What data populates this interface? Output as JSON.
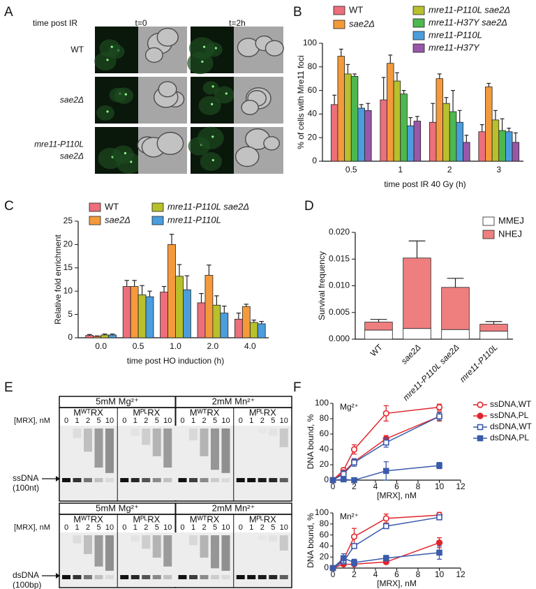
{
  "panel_labels": [
    "A",
    "B",
    "C",
    "D",
    "E",
    "F"
  ],
  "panel_a": {
    "header": "time post IR",
    "columns": [
      "t=0",
      "t=2h"
    ],
    "rows": [
      [
        "WT"
      ],
      [
        "sae2Δ"
      ],
      [
        "mre11-P110L",
        "sae2Δ"
      ]
    ]
  },
  "panel_e": {
    "conditions": [
      "5mM Mg²⁺",
      "2mM Mn²⁺"
    ],
    "proteins": [
      "MᵂᵀRX",
      "MᴾᴸRX"
    ],
    "lane_label": "[MRX], nM",
    "lanes": [
      0,
      1,
      2,
      5,
      10
    ],
    "substrates": [
      {
        "name": "ssDNA",
        "size": "(100nt)"
      },
      {
        "name": "dsDNA",
        "size": "(100bp)"
      }
    ]
  },
  "chart_data": [
    {
      "type": "bar",
      "categories": [
        "0.5",
        "1",
        "2",
        "3"
      ],
      "series": [
        {
          "name": "WT",
          "color": "#ec6f7b",
          "values": [
            48,
            52,
            33,
            25
          ],
          "errors": [
            8,
            19,
            16,
            6
          ]
        },
        {
          "name": "sae2Δ",
          "italic": true,
          "color": "#f59a3b",
          "values": [
            89,
            83,
            70,
            63
          ],
          "errors": [
            6,
            7,
            4,
            3
          ]
        },
        {
          "name": "mre11-P110L sae2Δ",
          "italic": true,
          "color": "#b8c02c",
          "values": [
            74,
            68,
            49,
            35
          ],
          "errors": [
            8,
            7,
            5,
            8
          ]
        },
        {
          "name": "mre11-H37Y sae2Δ",
          "italic": true,
          "color": "#4db84f",
          "values": [
            72,
            57,
            42,
            26
          ],
          "errors": [
            2,
            3,
            18,
            10
          ]
        },
        {
          "name": "mre11-P110L",
          "italic": true,
          "color": "#4a9ede",
          "values": [
            45,
            30,
            33,
            25
          ],
          "errors": [
            3,
            7,
            10,
            3
          ]
        },
        {
          "name": "mre11-H37Y",
          "italic": true,
          "color": "#9a57a8",
          "values": [
            43,
            34,
            16,
            16
          ],
          "errors": [
            6,
            4,
            6,
            8
          ]
        }
      ],
      "ylim": [
        0,
        100
      ],
      "yticks": [
        0,
        20,
        40,
        60,
        80,
        100
      ],
      "y_label": "% of cells with Mre11 foci",
      "x_label": "time post IR 40 Gy (h)"
    },
    {
      "type": "bar",
      "categories": [
        "0.0",
        "0.5",
        "1.0",
        "2.0",
        "4.0"
      ],
      "series": [
        {
          "name": "WT",
          "color": "#ec6f7b",
          "values": [
            0.5,
            11,
            9.8,
            7.5,
            4
          ],
          "errors": [
            0.2,
            1.3,
            1.2,
            2,
            1.3
          ]
        },
        {
          "name": "sae2Δ",
          "italic": true,
          "color": "#f59a3b",
          "values": [
            0.3,
            11,
            20,
            13.4,
            6.7
          ],
          "errors": [
            0.1,
            1.3,
            2.2,
            2.2,
            0.5
          ]
        },
        {
          "name": "mre11-P110L sae2Δ",
          "italic": true,
          "color": "#b8c02c",
          "values": [
            0.6,
            9.2,
            13.2,
            7,
            3.3
          ],
          "errors": [
            0.2,
            2,
            2.5,
            2,
            0.5
          ]
        },
        {
          "name": "mre11-P110L",
          "italic": true,
          "color": "#4a9ede",
          "values": [
            0.6,
            8.8,
            10.3,
            5.3,
            3
          ],
          "errors": [
            0.2,
            1.2,
            3,
            1.5,
            0.5
          ]
        }
      ],
      "ylim": [
        0,
        25
      ],
      "yticks": [
        0,
        5,
        10,
        15,
        20,
        25
      ],
      "y_label": "Relative fold enrichment",
      "x_label": "time post HO induction (h)"
    },
    {
      "type": "bar",
      "stacked": true,
      "categories": [
        "WT",
        "sae2Δ",
        "mre11-P110L sae2Δ",
        "mre11-P110L"
      ],
      "series": [
        {
          "name": "MMEJ",
          "color": "#ffffff",
          "values": [
            0.0017,
            0.002,
            0.0018,
            0.0015
          ],
          "errors": [
            0.0003,
            0.0004,
            0.0003,
            0.0003
          ]
        },
        {
          "name": "NHEJ",
          "color": "#ef7f7f",
          "values": [
            0.0015,
            0.0132,
            0.0079,
            0.0013
          ],
          "errors": [
            0.0005,
            0.0032,
            0.0017,
            0.0005
          ]
        }
      ],
      "ylim": [
        0,
        0.02
      ],
      "yticks": [
        {
          "value": 0,
          "label": "0.000"
        },
        {
          "value": 0.005,
          "label": "0.005"
        },
        {
          "value": 0.01,
          "label": "0.010"
        },
        {
          "value": 0.015,
          "label": "0.015"
        },
        {
          "value": 0.02,
          "label": "0.020"
        }
      ],
      "y_label": "Survival frequency"
    },
    {
      "type": "line",
      "annotation": "Mg²⁺",
      "x": [
        0,
        1,
        2,
        5,
        10
      ],
      "series": [
        {
          "name": "ssDNA,WT",
          "color": "#e0252b",
          "marker": "circle",
          "filled": false,
          "values": [
            0,
            13,
            40,
            87,
            95
          ],
          "errors": [
            1,
            3,
            6,
            10,
            4
          ]
        },
        {
          "name": "ssDNA,PL",
          "color": "#e0252b",
          "marker": "circle",
          "filled": true,
          "values": [
            0,
            10,
            24,
            54,
            83
          ],
          "errors": [
            1,
            2,
            3,
            4,
            6
          ]
        },
        {
          "name": "dsDNA,WT",
          "color": "#3b5bab",
          "marker": "square",
          "filled": false,
          "values": [
            0,
            8,
            23,
            49,
            83
          ],
          "errors": [
            3,
            4,
            5,
            6,
            5
          ]
        },
        {
          "name": "dsDNA,PL",
          "color": "#3b5bab",
          "marker": "square",
          "filled": true,
          "values": [
            0,
            1,
            0,
            12,
            19
          ],
          "errors": [
            1,
            1,
            1,
            12,
            4
          ]
        }
      ],
      "xlim": [
        0,
        12
      ],
      "xticks": [
        0,
        2,
        4,
        6,
        8,
        10,
        12
      ],
      "ylim": [
        0,
        100
      ],
      "yticks": [
        0,
        20,
        40,
        60,
        80,
        100
      ],
      "y_label": "DNA bound, %",
      "x_label": "[MRX], nM"
    },
    {
      "type": "line",
      "annotation": "Mn²⁺",
      "x": [
        0,
        1,
        2,
        5,
        10
      ],
      "series": [
        {
          "color": "#e0252b",
          "marker": "circle",
          "filled": false,
          "values": [
            0,
            15,
            57,
            90,
            96
          ],
          "errors": [
            1,
            5,
            15,
            8,
            5
          ]
        },
        {
          "color": "#e0252b",
          "marker": "circle",
          "filled": true,
          "values": [
            0,
            7,
            7,
            11,
            46
          ],
          "errors": [
            1,
            3,
            3,
            3,
            9
          ]
        },
        {
          "color": "#3b5bab",
          "marker": "square",
          "filled": false,
          "values": [
            0,
            12,
            40,
            76,
            92
          ],
          "errors": [
            2,
            4,
            4,
            3,
            4
          ]
        },
        {
          "color": "#3b5bab",
          "marker": "square",
          "filled": true,
          "values": [
            0,
            18,
            10,
            18,
            28
          ],
          "errors": [
            2,
            8,
            6,
            5,
            12
          ]
        }
      ],
      "xlim": [
        0,
        12
      ],
      "xticks": [
        0,
        2,
        4,
        6,
        8,
        10,
        12
      ],
      "ylim": [
        0,
        100
      ],
      "yticks": [
        0,
        20,
        40,
        60,
        80,
        100
      ],
      "y_label": "DNA bound, %",
      "x_label": "[MRX], nM"
    }
  ]
}
